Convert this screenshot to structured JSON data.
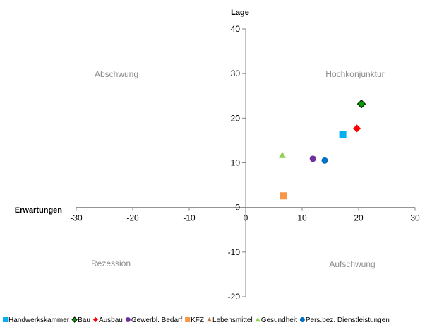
{
  "chart_data": {
    "type": "scatter",
    "xlabel": "Erwartungen",
    "ylabel": "Lage",
    "xlim": [
      -30,
      30
    ],
    "ylim": [
      -20,
      40
    ],
    "x_ticks": [
      -30,
      -20,
      -10,
      0,
      10,
      20,
      30
    ],
    "y_ticks": [
      -20,
      -10,
      0,
      10,
      20,
      30,
      40
    ],
    "grid": false,
    "legend_position": "bottom",
    "quadrant_labels": {
      "top_left": "Abschwung",
      "top_right": "Hochkonjunktur",
      "bottom_left": "Rezession",
      "bottom_right": "Aufschwung"
    },
    "series": [
      {
        "name": "Handwerkskammer",
        "marker": "square",
        "color": "#00b0f0",
        "x": 17.2,
        "y": 16.3
      },
      {
        "name": "Bau",
        "marker": "diamond",
        "color": "#00a000",
        "x": 20.5,
        "y": 23.2
      },
      {
        "name": "Ausbau",
        "marker": "diamond",
        "color": "#ff0000",
        "x": 19.7,
        "y": 17.7
      },
      {
        "name": "Gewerbl. Bedarf",
        "marker": "circle",
        "color": "#7030a0",
        "x": 11.9,
        "y": 10.9
      },
      {
        "name": "KFZ",
        "marker": "square",
        "color": "#f79646",
        "x": 6.7,
        "y": 2.6
      },
      {
        "name": "Lebensmittel",
        "marker": "triangle",
        "color": "#c0804d",
        "x": null,
        "y": null
      },
      {
        "name": "Gesundheit",
        "marker": "triangle",
        "color": "#92d050",
        "x": 6.5,
        "y": 11.7
      },
      {
        "name": "Pers.bez. Dienstleistungen",
        "marker": "circle",
        "color": "#0070c0",
        "x": 14.0,
        "y": 10.5
      }
    ]
  }
}
